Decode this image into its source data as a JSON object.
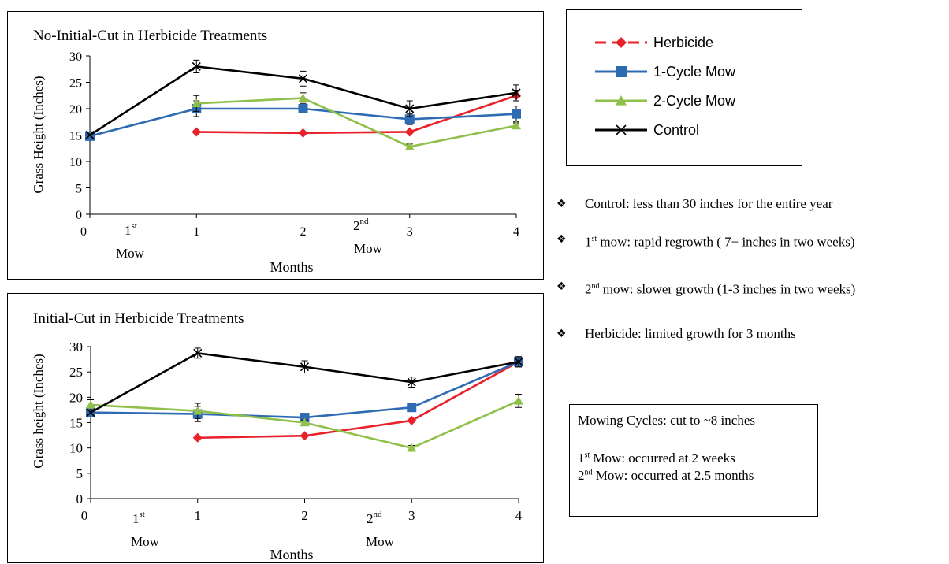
{
  "charts": [
    {
      "title": "No-Initial-Cut in Herbicide Treatments",
      "ylabel": "Grass Height  (Inches)",
      "xlabel": "Months",
      "yticks": [
        "0",
        "5",
        "10",
        "15",
        "20",
        "25",
        "30"
      ],
      "xticks": [
        "0",
        "1",
        "2",
        "3",
        "4"
      ],
      "mow1": {
        "n": "1",
        "sup": "st",
        "word": "Mow"
      },
      "mow2": {
        "n": "2",
        "sup": "nd",
        "word": "Mow"
      }
    },
    {
      "title": "Initial-Cut in Herbicide Treatments",
      "ylabel": "Grass height  (Inches)",
      "xlabel": "Months",
      "yticks": [
        "0",
        "5",
        "10",
        "15",
        "20",
        "25",
        "30"
      ],
      "xticks": [
        "0",
        "1",
        "2",
        "3",
        "4"
      ],
      "mow1": {
        "n": "1",
        "sup": "st",
        "word": "Mow"
      },
      "mow2": {
        "n": "2",
        "sup": "nd",
        "word": "Mow"
      }
    }
  ],
  "legend": [
    {
      "label": "Herbicide",
      "color": "#e8212a",
      "marker": "diamond"
    },
    {
      "label": "1-Cycle Mow",
      "color": "#2e6bb3",
      "marker": "square"
    },
    {
      "label": "2-Cycle Mow",
      "color": "#8fc04a",
      "marker": "triangle"
    },
    {
      "label": "Control",
      "color": "#000000",
      "marker": "x"
    }
  ],
  "notes": [
    {
      "text": "Control: less than 30 inches for the entire year"
    },
    {
      "text": "1st mow: rapid regrowth ( 7+ inches in two weeks)"
    },
    {
      "text": "2nd mow: slower growth (1-3 inches in two weeks)"
    },
    {
      "text": "Herbicide: limited  growth for 3 months"
    }
  ],
  "mow_box": {
    "line1": "Mowing Cycles: cut to ~8 inches",
    "line2": "1st Mow: occurred at 2 weeks",
    "line3": "2nd Mow: occurred at 2.5 months"
  },
  "chart_data": [
    {
      "type": "line",
      "title": "No-Initial-Cut in Herbicide Treatments",
      "xlabel": "Months",
      "ylabel": "Grass Height  (Inches)",
      "xlim": [
        0,
        4
      ],
      "ylim": [
        0,
        30
      ],
      "grid": false,
      "legend": "right",
      "series": [
        {
          "name": "Herbicide",
          "color": "#e8212a",
          "marker": "diamond",
          "x": [
            1,
            2,
            3,
            4
          ],
          "y": [
            15.6,
            15.4,
            15.6,
            22.5
          ],
          "err": [
            0,
            0,
            0,
            1
          ]
        },
        {
          "name": "1-Cycle Mow",
          "color": "#2e6bb3",
          "marker": "square",
          "x": [
            0,
            1,
            2,
            3,
            4
          ],
          "y": [
            14.8,
            20.0,
            20.0,
            18.0,
            19.0
          ],
          "err": [
            0,
            1.5,
            0.5,
            1,
            1.5
          ]
        },
        {
          "name": "2-Cycle Mow",
          "color": "#8fc04a",
          "marker": "triangle",
          "x": [
            1,
            2,
            3,
            4
          ],
          "y": [
            21.0,
            22.0,
            12.8,
            16.8
          ],
          "err": [
            1.5,
            1,
            0.5,
            0.5
          ]
        },
        {
          "name": "Control",
          "color": "#000000",
          "marker": "x",
          "x": [
            0,
            1,
            2,
            3,
            4
          ],
          "y": [
            15.0,
            28.0,
            25.7,
            20.0,
            23.0
          ],
          "err": [
            0,
            1.2,
            1.4,
            1.5,
            1.5
          ]
        }
      ]
    },
    {
      "type": "line",
      "title": "Initial-Cut in Herbicide Treatments",
      "xlabel": "Months",
      "ylabel": "Grass height  (Inches)",
      "xlim": [
        0,
        4
      ],
      "ylim": [
        0,
        30
      ],
      "grid": false,
      "legend": "right",
      "series": [
        {
          "name": "Herbicide",
          "color": "#e8212a",
          "marker": "diamond",
          "x": [
            1,
            2,
            3,
            4
          ],
          "y": [
            12.0,
            12.4,
            15.4,
            27.0
          ],
          "err": [
            0,
            0,
            0,
            1
          ]
        },
        {
          "name": "1-Cycle Mow",
          "color": "#2e6bb3",
          "marker": "square",
          "x": [
            0,
            1,
            2,
            3,
            4
          ],
          "y": [
            17.0,
            16.7,
            16.0,
            18.0,
            27.0
          ],
          "err": [
            0,
            1.5,
            0.5,
            0.5,
            1
          ]
        },
        {
          "name": "2-Cycle Mow",
          "color": "#8fc04a",
          "marker": "triangle",
          "x": [
            0,
            1,
            2,
            3,
            4
          ],
          "y": [
            18.5,
            17.3,
            15.0,
            10.0,
            19.3
          ],
          "err": [
            1,
            1.5,
            0.5,
            0.5,
            1.3
          ]
        },
        {
          "name": "Control",
          "color": "#000000",
          "marker": "x",
          "x": [
            0,
            1,
            2,
            3,
            4
          ],
          "y": [
            17.0,
            28.7,
            26.0,
            23.0,
            27.0
          ],
          "err": [
            0,
            1,
            1.2,
            1,
            1
          ]
        }
      ]
    }
  ]
}
